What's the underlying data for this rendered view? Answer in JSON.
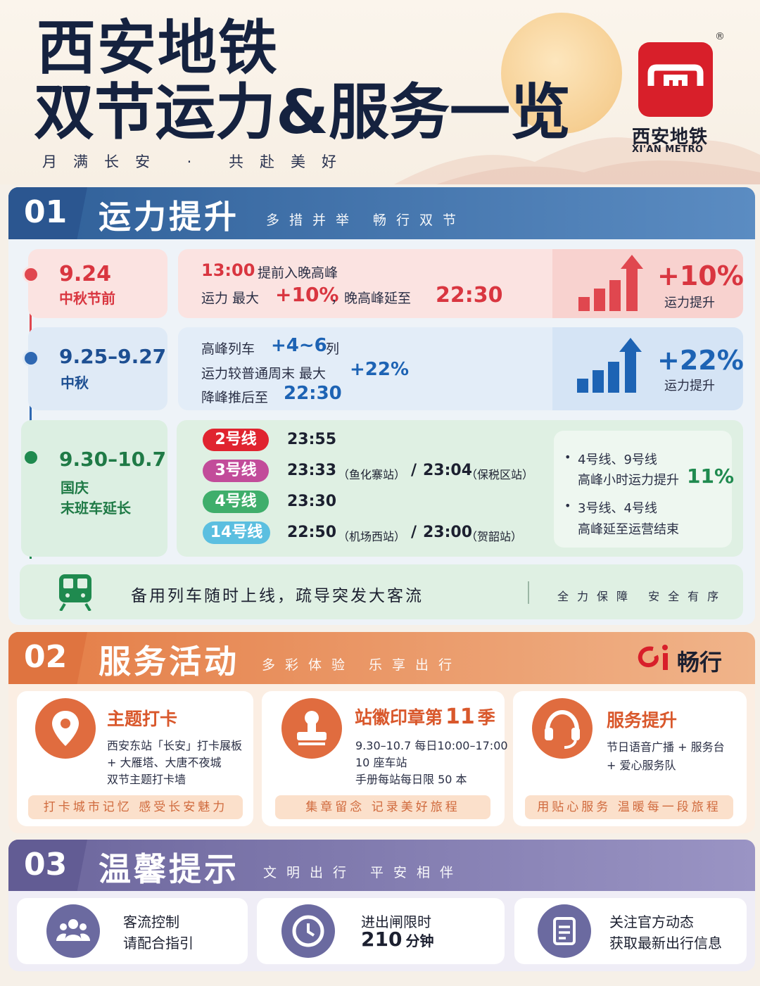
{
  "header": {
    "title_line1": "西安地铁",
    "title_line2": "双节运力&服务一览",
    "slogan": "月满长安 · 共赴美好",
    "logo_cn": "西安地铁",
    "logo_en": "XI'AN METRO",
    "registered": "®"
  },
  "sec1": {
    "num": "01",
    "title": "运力提升",
    "subtitle": "多措并举 畅行双节",
    "row1": {
      "date": "9.24",
      "label": "中秋节前",
      "time": "13:00",
      "line1_text": "提前入晚高峰",
      "line2_a": "运力 最大",
      "line2_pct": "+10%",
      "line2_b": "，晚高峰延至",
      "line2_time": "22:30",
      "stat": "+10%",
      "stat_label": "运力提升"
    },
    "row2": {
      "date": "9.25–9.27",
      "label": "中秋",
      "l1_a": "高峰列车",
      "l1_b": "+4~6",
      "l1_c": "列",
      "l2_a": "运力较普通周末 最大",
      "l2_b": "+22%",
      "l3_a": "降峰推后至",
      "l3_b": "22:30",
      "stat": "+22%",
      "stat_label": "运力提升"
    },
    "row3": {
      "date": "9.30–10.7",
      "label1": "国庆",
      "label2": "末班车延长",
      "lines": [
        {
          "name": "2号线",
          "time1": "23:55",
          "note1": "",
          "sep": "",
          "time2": "",
          "note2": "",
          "color": "#e0242f"
        },
        {
          "name": "3号线",
          "time1": "23:33",
          "note1": "（鱼化寨站）",
          "sep": "/",
          "time2": "23:04",
          "note2": "（保税区站）",
          "color": "#c24c9a"
        },
        {
          "name": "4号线",
          "time1": "23:30",
          "note1": "",
          "sep": "",
          "time2": "",
          "note2": "",
          "color": "#3fae6b"
        },
        {
          "name": "14号线",
          "time1": "22:50",
          "note1": "（机场西站）",
          "sep": "/",
          "time2": "23:00",
          "note2": "（贺韶站）",
          "color": "#5bbfe0"
        }
      ],
      "bullet1_a": "4号线、9号线",
      "bullet1_b": "高峰小时运力提升",
      "bullet1_pct": "11%",
      "bullet2_a": "3号线、4号线",
      "bullet2_b": "高峰延至运营结束"
    },
    "reserve": {
      "text": "备用列车随时上线，疏导突发大客流",
      "right": "全力保障 安全有序"
    }
  },
  "sec2": {
    "num": "02",
    "title": "服务活动",
    "subtitle": "多彩体验 乐享出行",
    "brand": "畅行",
    "cards": [
      {
        "title": "主题打卡",
        "lines": [
          "西安东站「长安」打卡展板",
          "+ 大雁塔、大唐不夜城",
          "双节主题打卡墙"
        ],
        "tag": "打卡城市记忆 感受长安魅力"
      },
      {
        "title_a": "站徽印章第",
        "title_num": "11",
        "title_b": "季",
        "lines": [
          "9.30–10.7 每日10:00–17:00",
          "10 座车站",
          "手册每站每日限 50 本"
        ],
        "tag": "集章留念 记录美好旅程"
      },
      {
        "title": "服务提升",
        "lines": [
          "节日语音广播 + 服务台",
          "+ 爱心服务队"
        ],
        "tag": "用贴心服务 温暖每一段旅程"
      }
    ]
  },
  "sec3": {
    "num": "03",
    "title": "温馨提示",
    "subtitle": "文明出行 平安相伴",
    "items": [
      {
        "l1": "客流控制",
        "l2": "请配合指引"
      },
      {
        "l1": "进出闸限时",
        "l2_num": "210",
        "l2_unit": "分钟"
      },
      {
        "l1": "关注官方动态",
        "l2": "获取最新出行信息"
      }
    ]
  },
  "colors": {
    "navy": "#15223f",
    "blue_header": "#3e6fa8",
    "orange_header": "#e68a55",
    "purple_header": "#7a74a8",
    "red": "#d93640",
    "blue": "#1d63b4",
    "green": "#1f8a4f"
  }
}
